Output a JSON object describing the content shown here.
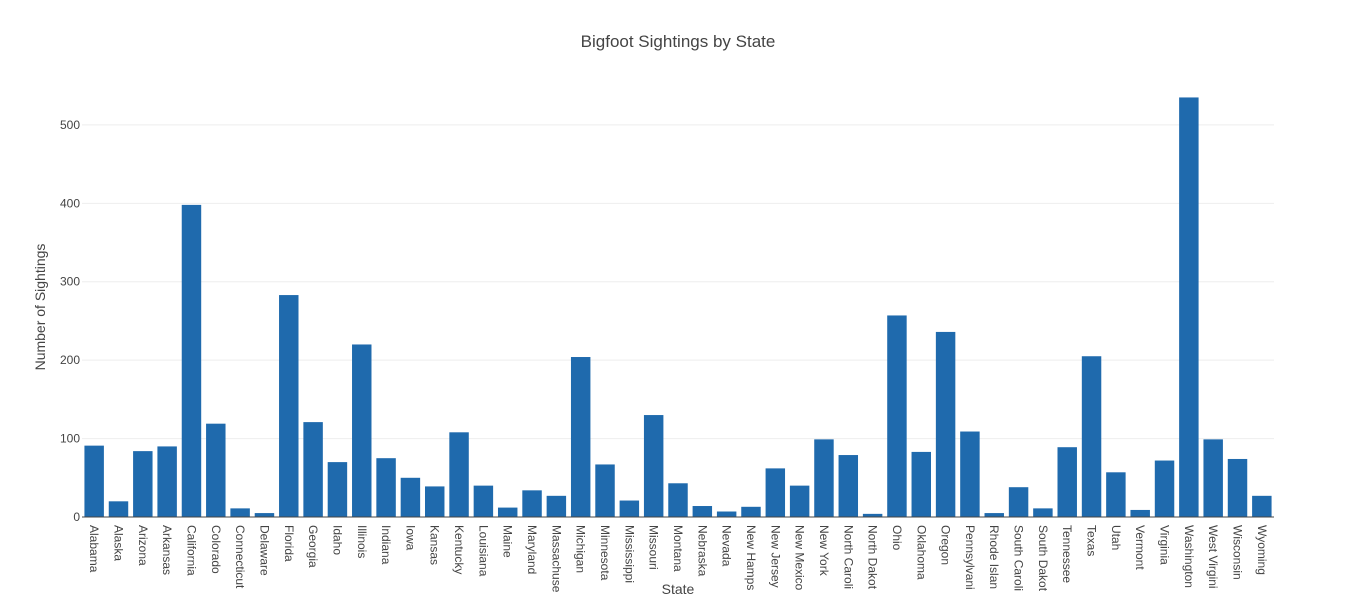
{
  "chart_data": {
    "type": "bar",
    "title": "Bigfoot Sightings by State",
    "xlabel": "State",
    "ylabel": "Number of Sightings",
    "ylim": [
      0,
      570
    ],
    "yticks": [
      0,
      100,
      200,
      300,
      400,
      500
    ],
    "grid": true,
    "bar_color": "#1f6aad",
    "grid_color": "#eeeeee",
    "categories": [
      "Alabama",
      "Alaska",
      "Arizona",
      "Arkansas",
      "California",
      "Colorado",
      "Connecticut",
      "Delaware",
      "Florida",
      "Georgia",
      "Idaho",
      "Illinois",
      "Indiana",
      "Iowa",
      "Kansas",
      "Kentucky",
      "Louisiana",
      "Maine",
      "Maryland",
      "Massachusetts",
      "Michigan",
      "Minnesota",
      "Mississippi",
      "Missouri",
      "Montana",
      "Nebraska",
      "Nevada",
      "New Hampshire",
      "New Jersey",
      "New Mexico",
      "New York",
      "North Carolina",
      "North Dakota",
      "Ohio",
      "Oklahoma",
      "Oregon",
      "Pennsylvania",
      "Rhode Island",
      "South Carolina",
      "South Dakota",
      "Tennessee",
      "Texas",
      "Utah",
      "Vermont",
      "Virginia",
      "Washington",
      "West Virginia",
      "Wisconsin",
      "Wyoming"
    ],
    "category_labels": [
      "Alabama",
      "Alaska",
      "Arizona",
      "Arkansas",
      "California",
      "Colorado",
      "Connecticut",
      "Delaware",
      "Florida",
      "Georgia",
      "Idaho",
      "Illinois",
      "Indiana",
      "Iowa",
      "Kansas",
      "Kentucky",
      "Louisiana",
      "Maine",
      "Maryland",
      "Massachuse",
      "Michigan",
      "Minnesota",
      "Mississippi",
      "Missouri",
      "Montana",
      "Nebraska",
      "Nevada",
      "New Hamps",
      "New Jersey",
      "New Mexico",
      "New York",
      "North Caroli",
      "North Dakot",
      "Ohio",
      "Oklahoma",
      "Oregon",
      "Pennsylvani",
      "Rhode Islan",
      "South Caroli",
      "South Dakot",
      "Tennessee",
      "Texas",
      "Utah",
      "Vermont",
      "Virginia",
      "Washington",
      "West Virgini",
      "Wisconsin",
      "Wyoming"
    ],
    "values": [
      91,
      20,
      84,
      90,
      398,
      119,
      11,
      5,
      283,
      121,
      70,
      220,
      75,
      50,
      39,
      108,
      40,
      12,
      34,
      27,
      204,
      67,
      21,
      130,
      43,
      14,
      7,
      13,
      62,
      40,
      99,
      79,
      4,
      257,
      83,
      236,
      109,
      5,
      38,
      11,
      89,
      205,
      57,
      9,
      72,
      535,
      99,
      74,
      27
    ]
  }
}
